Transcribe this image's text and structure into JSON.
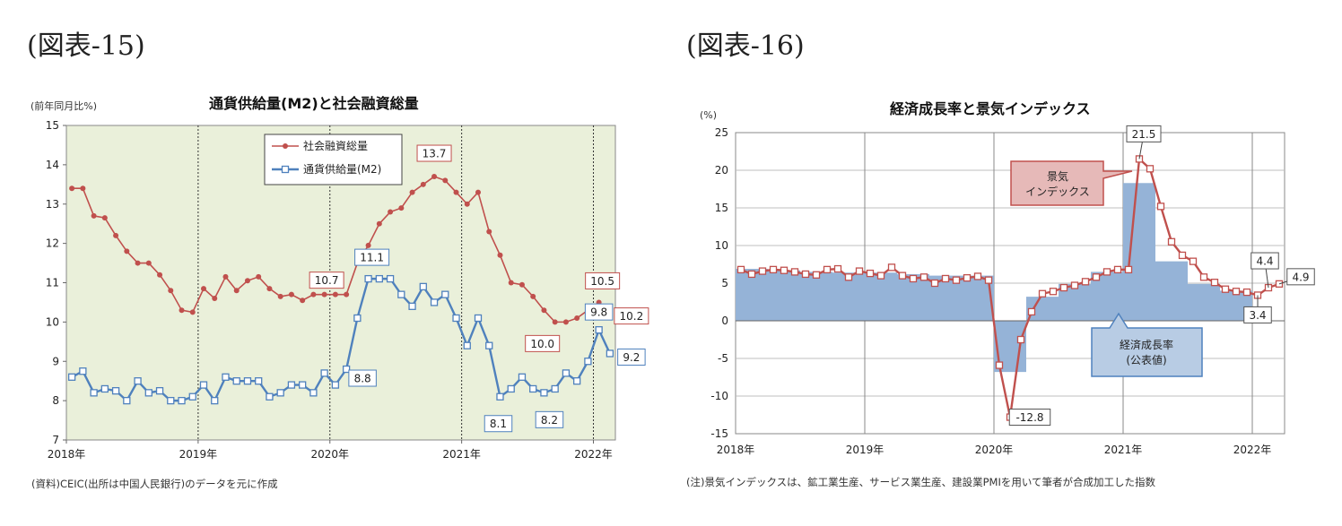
{
  "left": {
    "figure_label": "(図表-15)",
    "title": "通貨供給量(M2)と社会融資総量",
    "unit": "(前年同月比%)",
    "source_note": "(資料)CEIC(出所は中国人民銀行)のデータを元に作成"
  },
  "right": {
    "figure_label": "(図表-16)",
    "title": "経済成長率と景気インデックス",
    "unit": "(%)",
    "footnote": "(注)景気インデックスは、鉱工業生産、サービス業生産、建設業PMIを用いて筆者が合成加工した指数"
  },
  "chart_data": [
    {
      "type": "line",
      "title": "通貨供給量(M2)と社会融資総量",
      "ylabel": "(前年同月比%)",
      "xlabel": "",
      "ylim": [
        7,
        15
      ],
      "yticks": [
        "15",
        "14",
        "13",
        "12",
        "11",
        "10",
        "9",
        "8",
        "7"
      ],
      "xticks": [
        "2018年",
        "2019年",
        "2020年",
        "2021年",
        "2022年"
      ],
      "x_start": "2018-01",
      "x_end": "2022-03",
      "grid": true,
      "legend_position": "top-center",
      "colors": {
        "plot_bg": "#EAF0DA",
        "tsf": "#C0504D",
        "m2": "#4F81BD"
      },
      "series": [
        {
          "name": "社会融資総量",
          "values": [
            13.4,
            13.4,
            12.7,
            12.65,
            12.2,
            11.8,
            11.5,
            11.5,
            11.2,
            10.8,
            10.3,
            10.25,
            10.85,
            10.6,
            11.15,
            10.8,
            11.05,
            11.15,
            10.85,
            10.65,
            10.7,
            10.55,
            10.7,
            10.7,
            10.7,
            10.7,
            11.5,
            11.95,
            12.5,
            12.8,
            12.9,
            13.3,
            13.5,
            13.7,
            13.6,
            13.3,
            13.0,
            13.3,
            12.3,
            11.7,
            11.0,
            10.95,
            10.65,
            10.3,
            10.0,
            10.0,
            10.1,
            10.3,
            10.5,
            10.2
          ]
        },
        {
          "name": "通貨供給量(M2)",
          "values": [
            8.6,
            8.75,
            8.2,
            8.3,
            8.25,
            8.0,
            8.5,
            8.2,
            8.25,
            8.0,
            8.0,
            8.1,
            8.4,
            8.0,
            8.6,
            8.5,
            8.5,
            8.5,
            8.1,
            8.2,
            8.4,
            8.4,
            8.2,
            8.7,
            8.4,
            8.8,
            10.1,
            11.1,
            11.1,
            11.1,
            10.7,
            10.4,
            10.9,
            10.5,
            10.7,
            10.1,
            9.4,
            10.1,
            9.4,
            8.1,
            8.3,
            8.6,
            8.3,
            8.2,
            8.3,
            8.7,
            8.5,
            9.0,
            9.8,
            9.2
          ]
        }
      ],
      "annotations": [
        {
          "text": "13.7",
          "series": 0,
          "index": 33
        },
        {
          "text": "10.7",
          "series": 0,
          "index": 25
        },
        {
          "text": "10.0",
          "series": 0,
          "index": 44
        },
        {
          "text": "10.5",
          "series": 0,
          "index": 48
        },
        {
          "text": "10.2",
          "series": 0,
          "index": 49
        },
        {
          "text": "11.1",
          "series": 1,
          "index": 27
        },
        {
          "text": "8.8",
          "series": 1,
          "index": 25
        },
        {
          "text": "8.1",
          "series": 1,
          "index": 39
        },
        {
          "text": "8.2",
          "series": 1,
          "index": 43
        },
        {
          "text": "9.8",
          "series": 1,
          "index": 48
        },
        {
          "text": "9.2",
          "series": 1,
          "index": 49
        }
      ]
    },
    {
      "type": "bar+line",
      "title": "経済成長率と景気インデックス",
      "ylabel": "(%)",
      "xlabel": "",
      "ylim": [
        -15,
        25
      ],
      "yticks": [
        "25",
        "20",
        "15",
        "10",
        "5",
        "0",
        "-5",
        "-10",
        "-15"
      ],
      "xticks": [
        "2018年",
        "2019年",
        "2020年",
        "2021年",
        "2022年"
      ],
      "x_start": "2018-01",
      "x_end": "2022-03",
      "grid": true,
      "colors": {
        "bar": "#95B3D7",
        "line": "#C0504D",
        "plot_bg": "#ffffff"
      },
      "bar_series": {
        "name": "経済成長率(公表値)",
        "quarters": [
          "2018Q1",
          "2018Q2",
          "2018Q3",
          "2018Q4",
          "2019Q1",
          "2019Q2",
          "2019Q3",
          "2019Q4",
          "2020Q1",
          "2020Q2",
          "2020Q3",
          "2020Q4",
          "2021Q1",
          "2021Q2",
          "2021Q3",
          "2021Q4"
        ],
        "values": [
          6.9,
          6.7,
          6.5,
          6.4,
          6.4,
          6.2,
          6.0,
          6.0,
          -6.8,
          3.2,
          4.9,
          6.5,
          18.3,
          7.9,
          4.9,
          4.0
        ]
      },
      "line_series": {
        "name": "景気インデックス",
        "values": [
          6.8,
          6.2,
          6.6,
          6.8,
          6.7,
          6.5,
          6.2,
          6.1,
          6.8,
          6.9,
          5.8,
          6.6,
          6.3,
          6.0,
          7.1,
          6.0,
          5.6,
          5.8,
          5.0,
          5.6,
          5.4,
          5.7,
          5.9,
          5.4,
          -5.9,
          -12.8,
          -2.5,
          1.2,
          3.6,
          3.9,
          4.4,
          4.7,
          5.2,
          5.8,
          6.5,
          6.8,
          6.8,
          21.5,
          20.2,
          15.2,
          10.5,
          8.7,
          7.9,
          5.8,
          5.1,
          4.2,
          3.9,
          3.8,
          3.4,
          4.4,
          4.9
        ]
      },
      "annotations": [
        {
          "text": "21.5",
          "index": 37
        },
        {
          "text": "-12.8",
          "index": 25
        },
        {
          "text": "4.4",
          "index": 49
        },
        {
          "text": "4.9",
          "index": 50
        },
        {
          "text": "3.4",
          "index": 48
        }
      ],
      "callouts": [
        {
          "text": [
            "景気",
            "インデックス"
          ],
          "fill": "#E6B9B8",
          "stroke": "#C0504D"
        },
        {
          "text": [
            "経済成長率",
            "(公表値)"
          ],
          "fill": "#B8CCE4",
          "stroke": "#4F81BD"
        }
      ]
    }
  ]
}
